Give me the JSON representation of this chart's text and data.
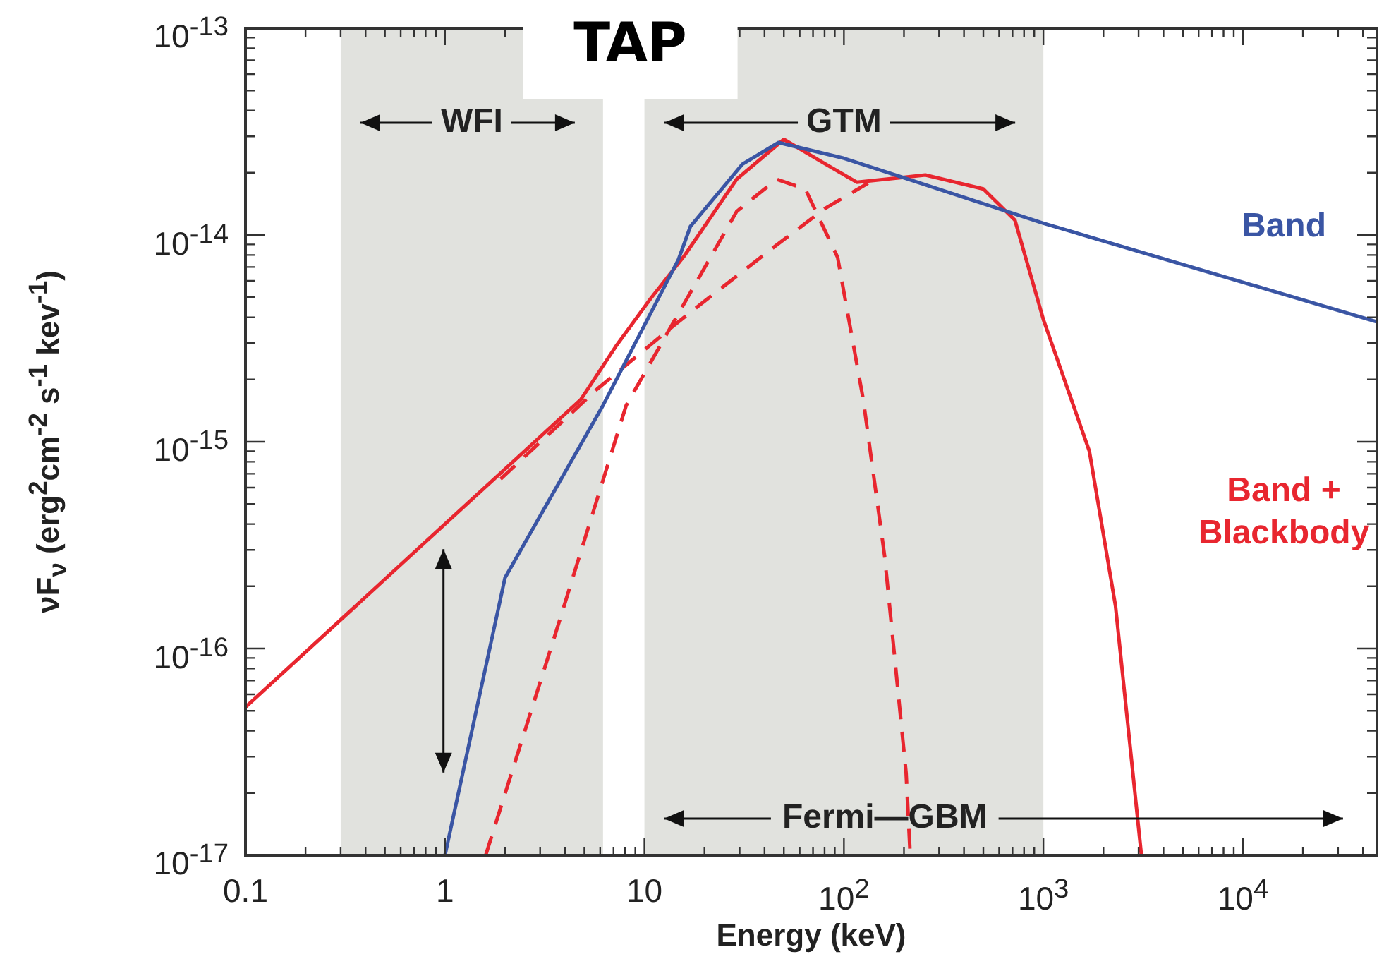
{
  "chart_data": {
    "type": "line",
    "title": "TAP",
    "xlabel": "Energy (keV)",
    "ylabel": "νF$_{ν}$ (erg$^{2}$cm$^{-2}$ s$^{-1}$ kev$^{-1}$)",
    "log": "xy",
    "grid": false,
    "legend": false,
    "marker": "none",
    "xlim": [
      0.1,
      47000
    ],
    "ylim": [
      1e-17,
      1e-13
    ],
    "xticks": [
      {
        "value": 0.1,
        "label": "0.1"
      },
      1,
      10,
      {
        "value": 100,
        "label": "10$^{2}$"
      },
      {
        "value": 1000,
        "label": "10$^{3}$"
      },
      {
        "value": 10000,
        "label": "10$^{4}$"
      }
    ],
    "yticks": [
      {
        "value": 1e-17,
        "label": "10$^{-17}$"
      },
      {
        "value": 1e-16,
        "label": "10$^{-16}$"
      },
      {
        "value": 1e-15,
        "label": "10$^{-15}$"
      },
      {
        "value": 1e-14,
        "label": "10$^{-14}$"
      },
      {
        "value": 1e-13,
        "label": "10$^{-13}$"
      }
    ],
    "bands": [
      {
        "axis": "x",
        "from": 0.3,
        "to": 6.2,
        "label": "WFI",
        "color": "#e1e2de"
      },
      {
        "axis": "x",
        "from": 10,
        "to": 1000,
        "label": "GTM",
        "color": "#e1e2de"
      }
    ],
    "annotations": [
      "Fermi—GBM"
    ],
    "series": [
      {
        "name": "Band",
        "color": "#3a55a4",
        "line_style": "solid",
        "x": [
          1,
          2,
          6.2,
          14.8,
          17,
          31,
          47,
          100,
          1000,
          47000
        ],
        "values": [
          1e-17,
          2.2e-16,
          1.5e-15,
          7.6e-15,
          1.1e-14,
          2.2e-14,
          2.8e-14,
          2.35e-14,
          1.14e-14,
          3.8e-15
        ]
      },
      {
        "name": "Band + Blackbody",
        "color": "#e8262f",
        "line_style": "solid",
        "x": [
          0.1,
          1,
          4.8,
          7.2,
          10.7,
          15.8,
          29,
          50,
          81,
          116,
          256,
          500,
          720,
          1000,
          1700,
          2300,
          3100
        ],
        "values": [
          5.2e-17,
          4e-16,
          1.6e-15,
          2.9e-15,
          4.9e-15,
          7.9e-15,
          1.86e-14,
          2.9e-14,
          2.2e-14,
          1.8e-14,
          1.95e-14,
          1.67e-14,
          1.18e-14,
          3.9e-15,
          9e-16,
          1.6e-16,
          1e-17
        ]
      },
      {
        "color": "#e8262f",
        "line_style": "dashed",
        "x": [
          1.9,
          5.8,
          13.8,
          19,
          45,
          81,
          132
        ],
        "values": [
          6.6e-16,
          1.8e-15,
          3.6e-15,
          4.6e-15,
          8.8e-15,
          1.35e-14,
          1.78e-14
        ]
      },
      {
        "color": "#e8262f",
        "line_style": "dashed",
        "x": [
          1.6,
          3.6,
          8.1,
          18,
          29,
          46,
          64,
          93,
          125,
          160,
          205,
          215
        ],
        "values": [
          1e-17,
          1.2e-16,
          1.5e-15,
          5.8e-15,
          1.3e-14,
          1.86e-14,
          1.67e-14,
          7.8e-15,
          1.6e-15,
          2.8e-16,
          2.5e-17,
          1e-17
        ]
      }
    ]
  }
}
